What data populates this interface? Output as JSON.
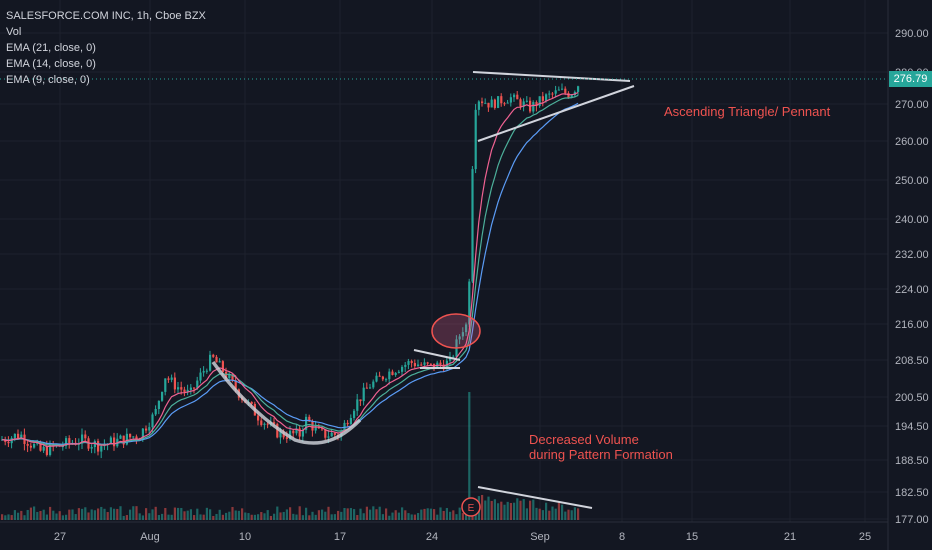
{
  "legend": {
    "title": "SALESFORCE.COM INC, 1h, Cboe BZX",
    "vol": "Vol",
    "ema21": "EMA (21, close, 0)",
    "ema14": "EMA (14, close, 0)",
    "ema9": "EMA (9, close, 0)"
  },
  "last_price": "276.79",
  "annotations": {
    "triangle": "Ascending Triangle/ Pennant",
    "volume_line1": "Decreased Volume",
    "volume_line2": "during Pattern Formation",
    "earnings_marker": "E"
  },
  "colors": {
    "background": "#131722",
    "up": "#26a69a",
    "down": "#ef5350",
    "ema21": "#5b9cf6",
    "ema14": "#4caf9a",
    "ema9": "#f06292",
    "annotation": "#ef5350",
    "trendline": "#d1d4dc"
  },
  "chart_data": {
    "type": "candlestick",
    "ylim": [
      177,
      293
    ],
    "y_ticks": [
      "290.00",
      "280.00",
      "270.00",
      "260.00",
      "250.00",
      "240.00",
      "232.00",
      "224.00",
      "216.00",
      "208.50",
      "200.50",
      "194.50",
      "188.50",
      "182.50",
      "177.00"
    ],
    "x_ticks": [
      "27",
      "Aug",
      "10",
      "17",
      "24",
      "Sep",
      "8",
      "15",
      "21",
      "25"
    ],
    "scale": "log",
    "legend_placement": "top-left",
    "grid": true,
    "price_series": [
      {
        "t": 0,
        "p": 192
      },
      {
        "t": 20,
        "p": 193
      },
      {
        "t": 40,
        "p": 190
      },
      {
        "t": 60,
        "p": 191
      },
      {
        "t": 80,
        "p": 192
      },
      {
        "t": 100,
        "p": 191
      },
      {
        "t": 120,
        "p": 192
      },
      {
        "t": 140,
        "p": 193
      },
      {
        "t": 155,
        "p": 197
      },
      {
        "t": 165,
        "p": 205
      },
      {
        "t": 175,
        "p": 203
      },
      {
        "t": 190,
        "p": 201
      },
      {
        "t": 200,
        "p": 205
      },
      {
        "t": 212,
        "p": 209
      },
      {
        "t": 220,
        "p": 207
      },
      {
        "t": 240,
        "p": 201
      },
      {
        "t": 260,
        "p": 196
      },
      {
        "t": 280,
        "p": 193
      },
      {
        "t": 300,
        "p": 193
      },
      {
        "t": 305,
        "p": 196
      },
      {
        "t": 320,
        "p": 193
      },
      {
        "t": 340,
        "p": 193
      },
      {
        "t": 355,
        "p": 199
      },
      {
        "t": 370,
        "p": 203
      },
      {
        "t": 390,
        "p": 206
      },
      {
        "t": 410,
        "p": 208
      },
      {
        "t": 430,
        "p": 207
      },
      {
        "t": 450,
        "p": 208
      },
      {
        "t": 462,
        "p": 215
      },
      {
        "t": 468,
        "p": 216
      },
      {
        "t": 472,
        "p": 252
      },
      {
        "t": 476,
        "p": 272
      },
      {
        "t": 490,
        "p": 270
      },
      {
        "t": 510,
        "p": 272
      },
      {
        "t": 530,
        "p": 269
      },
      {
        "t": 545,
        "p": 272
      },
      {
        "t": 560,
        "p": 274
      },
      {
        "t": 570,
        "p": 273
      },
      {
        "t": 580,
        "p": 276.79
      }
    ],
    "volume": {
      "baseline_level": 181.5,
      "spike_level": 201,
      "spike_index": 468
    }
  }
}
